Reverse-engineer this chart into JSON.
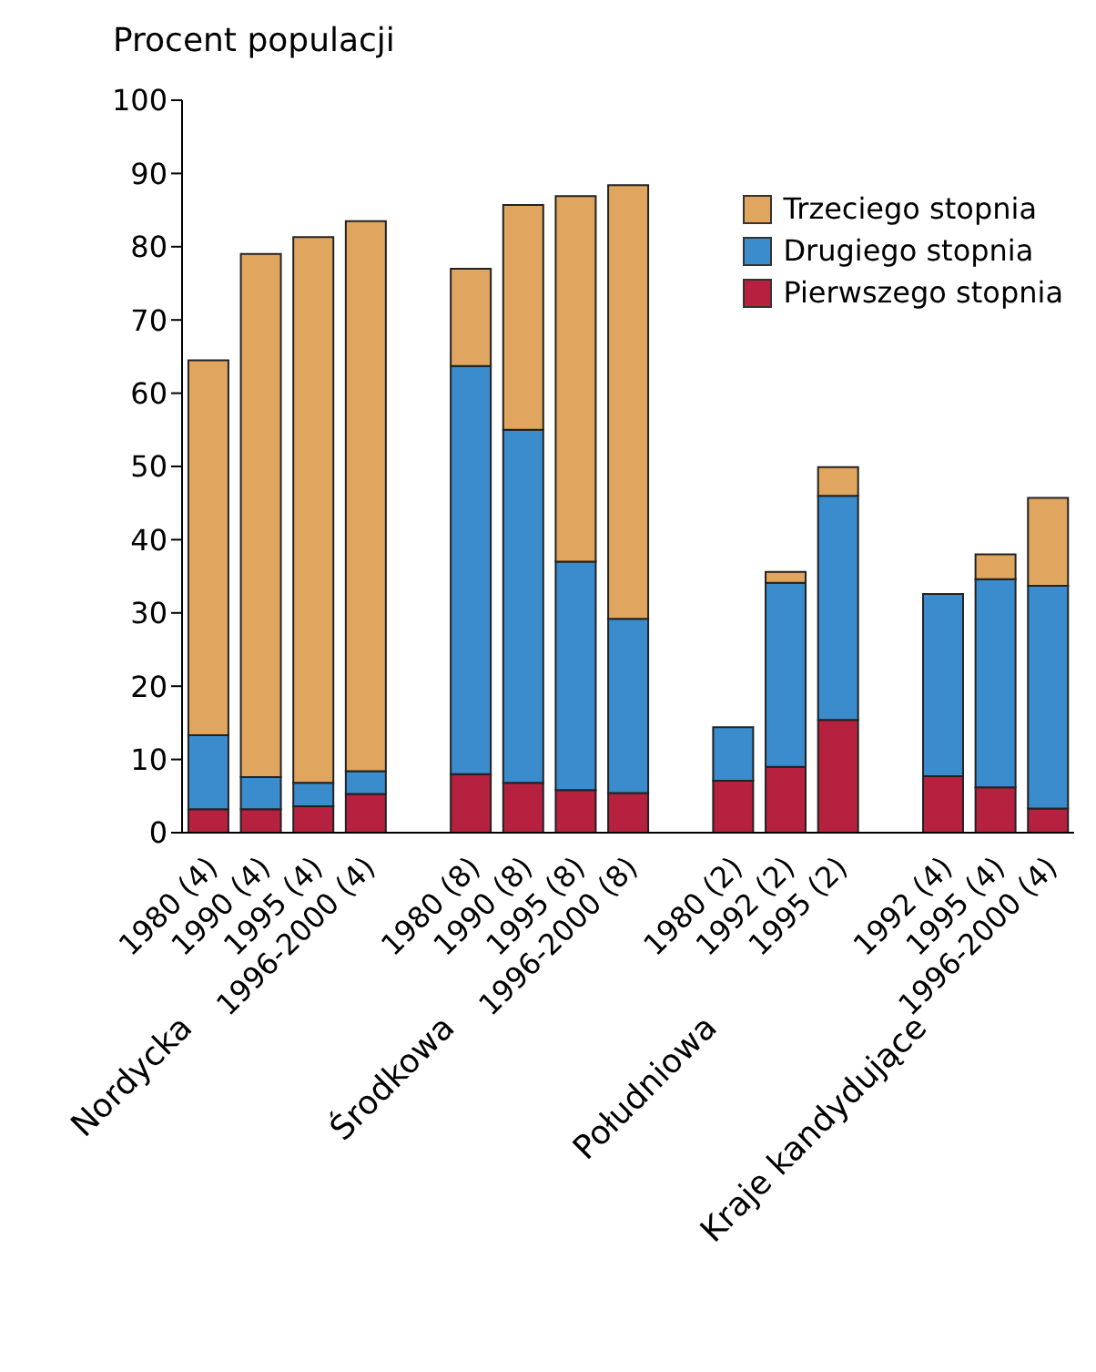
{
  "chart_data": {
    "type": "bar",
    "stacked": true,
    "ylabel": "Procent populacji",
    "categories": [
      "1980 (4)",
      "1990 (4)",
      "1995 (4)",
      "1996-2000 (4)",
      null,
      "1980 (8)",
      "1990 (8)",
      "1995 (8)",
      "1996-2000 (8)",
      null,
      "1980 (2)",
      "1992 (2)",
      "1995 (2)",
      null,
      "1992 (4)",
      "1995 (4)",
      "1996-2000 (4)"
    ],
    "series": [
      {
        "name": "Pierwszego stopnia",
        "color": "#b5213f",
        "values": [
          3.2,
          3.2,
          3.6,
          5.3,
          null,
          8,
          6.8,
          5.8,
          5.4,
          null,
          7.1,
          9,
          15.4,
          null,
          7.7,
          6.2,
          3.3
        ]
      },
      {
        "name": "Drugiego stopnia",
        "color": "#3a8ccc",
        "values": [
          10.1,
          4.4,
          3.2,
          3.1,
          null,
          55.7,
          48.2,
          31.2,
          23.8,
          null,
          7.3,
          25.1,
          30.6,
          null,
          24.9,
          28.4,
          30.4
        ]
      },
      {
        "name": "Trzeciego stopnia",
        "color": "#e0a660",
        "values": [
          51.2,
          71.4,
          74.5,
          75.1,
          null,
          13.3,
          30.7,
          49.9,
          59.2,
          null,
          null,
          1.5,
          3.9,
          null,
          null,
          3.4,
          12
        ]
      }
    ],
    "annotations": [
      "Nordycka",
      "Środkowa",
      "Południowa",
      "Kraje kandydujące"
    ],
    "ylim": [
      0,
      100
    ],
    "yticks": [
      0,
      10,
      20,
      30,
      40,
      50,
      60,
      70,
      80,
      90,
      100
    ],
    "grid": false,
    "legend": "top right"
  }
}
